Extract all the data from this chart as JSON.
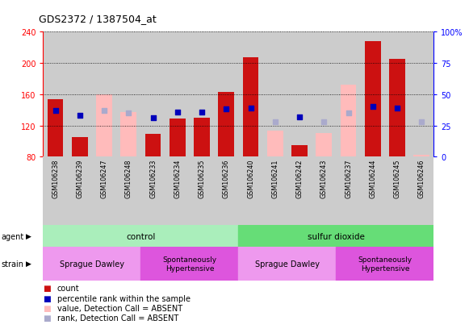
{
  "title": "GDS2372 / 1387504_at",
  "samples": [
    "GSM106238",
    "GSM106239",
    "GSM106247",
    "GSM106248",
    "GSM106233",
    "GSM106234",
    "GSM106235",
    "GSM106236",
    "GSM106240",
    "GSM106241",
    "GSM106242",
    "GSM106243",
    "GSM106237",
    "GSM106244",
    "GSM106245",
    "GSM106246"
  ],
  "count_present": [
    154,
    105,
    null,
    null,
    109,
    129,
    130,
    163,
    207,
    null,
    95,
    null,
    null,
    228,
    205,
    null
  ],
  "count_absent": [
    null,
    null,
    160,
    137,
    null,
    null,
    null,
    null,
    null,
    113,
    null,
    110,
    172,
    null,
    null,
    82
  ],
  "rank_present": [
    37,
    33,
    null,
    null,
    31,
    36,
    36,
    38,
    39,
    null,
    32,
    null,
    null,
    40,
    39,
    null
  ],
  "rank_absent": [
    null,
    null,
    37,
    35,
    null,
    null,
    null,
    null,
    null,
    28,
    null,
    28,
    35,
    null,
    null,
    28
  ],
  "ylim_left": [
    80,
    240
  ],
  "ylim_right": [
    0,
    100
  ],
  "yticks_left": [
    80,
    120,
    160,
    200,
    240
  ],
  "yticks_right": [
    0,
    25,
    50,
    75,
    100
  ],
  "bar_color_present": "#cc1111",
  "bar_color_absent": "#ffbbbb",
  "dot_color_present": "#0000bb",
  "dot_color_absent": "#aaaacc",
  "agent_green_light": "#aaeebb",
  "agent_green_dark": "#66dd77",
  "strain_pink_light": "#ee99ee",
  "strain_pink_dark": "#dd55dd",
  "tick_bg": "#cccccc",
  "legend_items": [
    "count",
    "percentile rank within the sample",
    "value, Detection Call = ABSENT",
    "rank, Detection Call = ABSENT"
  ],
  "legend_colors": [
    "#cc1111",
    "#0000bb",
    "#ffbbbb",
    "#aaaacc"
  ],
  "legend_marker_sizes": [
    8,
    8,
    8,
    8
  ]
}
